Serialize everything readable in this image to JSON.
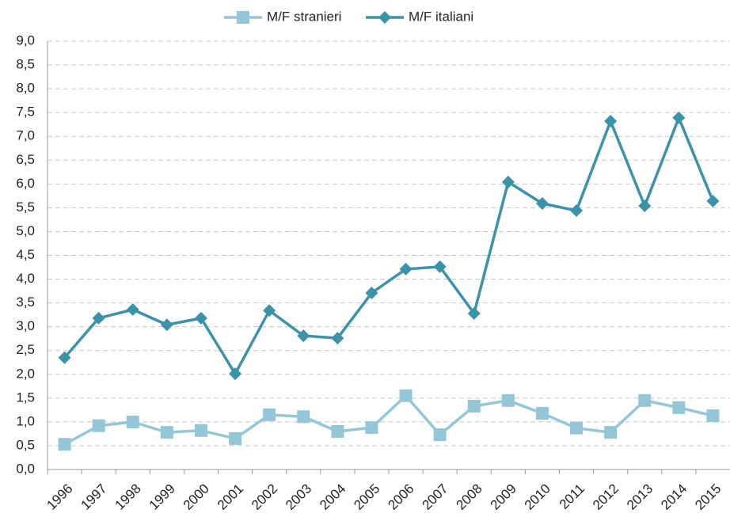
{
  "chart_data": {
    "type": "line",
    "categories": [
      "1996",
      "1997",
      "1998",
      "1999",
      "2000",
      "2001",
      "2002",
      "2003",
      "2004",
      "2005",
      "2006",
      "2007",
      "2008",
      "2009",
      "2010",
      "2011",
      "2012",
      "2013",
      "2014",
      "2015"
    ],
    "series": [
      {
        "name": "M/F stranieri",
        "color": "#93c6d6",
        "marker": "square",
        "values": [
          0.53,
          0.92,
          1.0,
          0.78,
          0.82,
          0.65,
          1.15,
          1.11,
          0.8,
          0.88,
          1.55,
          0.73,
          1.33,
          1.45,
          1.18,
          0.87,
          0.78,
          1.45,
          1.3,
          1.13
        ]
      },
      {
        "name": "M/F italiani",
        "color": "#3a93a8",
        "marker": "diamond",
        "values": [
          2.35,
          3.18,
          3.36,
          3.04,
          3.18,
          2.01,
          3.34,
          2.81,
          2.76,
          3.71,
          4.21,
          4.26,
          3.28,
          6.04,
          5.59,
          5.44,
          7.32,
          5.54,
          7.39,
          5.64
        ]
      }
    ],
    "ylim": [
      0,
      9
    ],
    "yticks": [
      {
        "value": 0,
        "label": "0,0"
      },
      {
        "value": 0.5,
        "label": "0,5"
      },
      {
        "value": 1,
        "label": "1,0"
      },
      {
        "value": 1.5,
        "label": "1,5"
      },
      {
        "value": 2,
        "label": "2,0"
      },
      {
        "value": 2.5,
        "label": "2,5"
      },
      {
        "value": 3,
        "label": "3,0"
      },
      {
        "value": 3.5,
        "label": "3,5"
      },
      {
        "value": 4,
        "label": "4,0"
      },
      {
        "value": 4.5,
        "label": "4,5"
      },
      {
        "value": 5,
        "label": "5,0"
      },
      {
        "value": 5.5,
        "label": "5,5"
      },
      {
        "value": 6,
        "label": "6,0"
      },
      {
        "value": 6.5,
        "label": "6,5"
      },
      {
        "value": 7,
        "label": "7,0"
      },
      {
        "value": 7.5,
        "label": "7,5"
      },
      {
        "value": 8,
        "label": "8,0"
      },
      {
        "value": 8.5,
        "label": "8,5"
      },
      {
        "value": 9,
        "label": "9,0"
      }
    ],
    "grid": true,
    "legend": "top"
  }
}
